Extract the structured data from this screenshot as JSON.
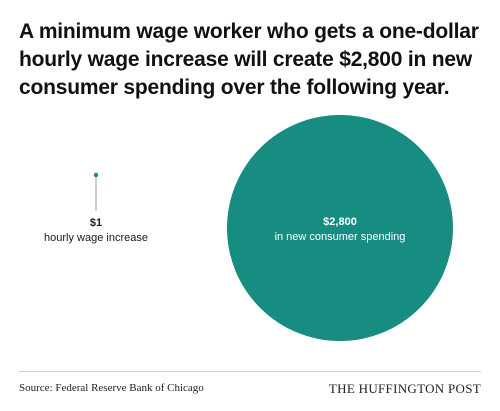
{
  "title": "A minimum wage worker who gets a one-dollar hourly wage increase will create $2,800 in new consumer spending over the following year.",
  "source": "Source: Federal Reserve Bank of Chicago",
  "brand": "THE HUFFINGTON POST",
  "colors": {
    "accent": "#178c80",
    "label_on_fill": "#ffffff",
    "label_dark": "#1a1a1a"
  },
  "chart_data": {
    "type": "bubble",
    "scale": "area",
    "items": [
      {
        "value": 1,
        "value_label": "$1",
        "caption": "hourly wage increase"
      },
      {
        "value": 2800,
        "value_label": "$2,800",
        "caption": "in new consumer spending"
      }
    ]
  }
}
